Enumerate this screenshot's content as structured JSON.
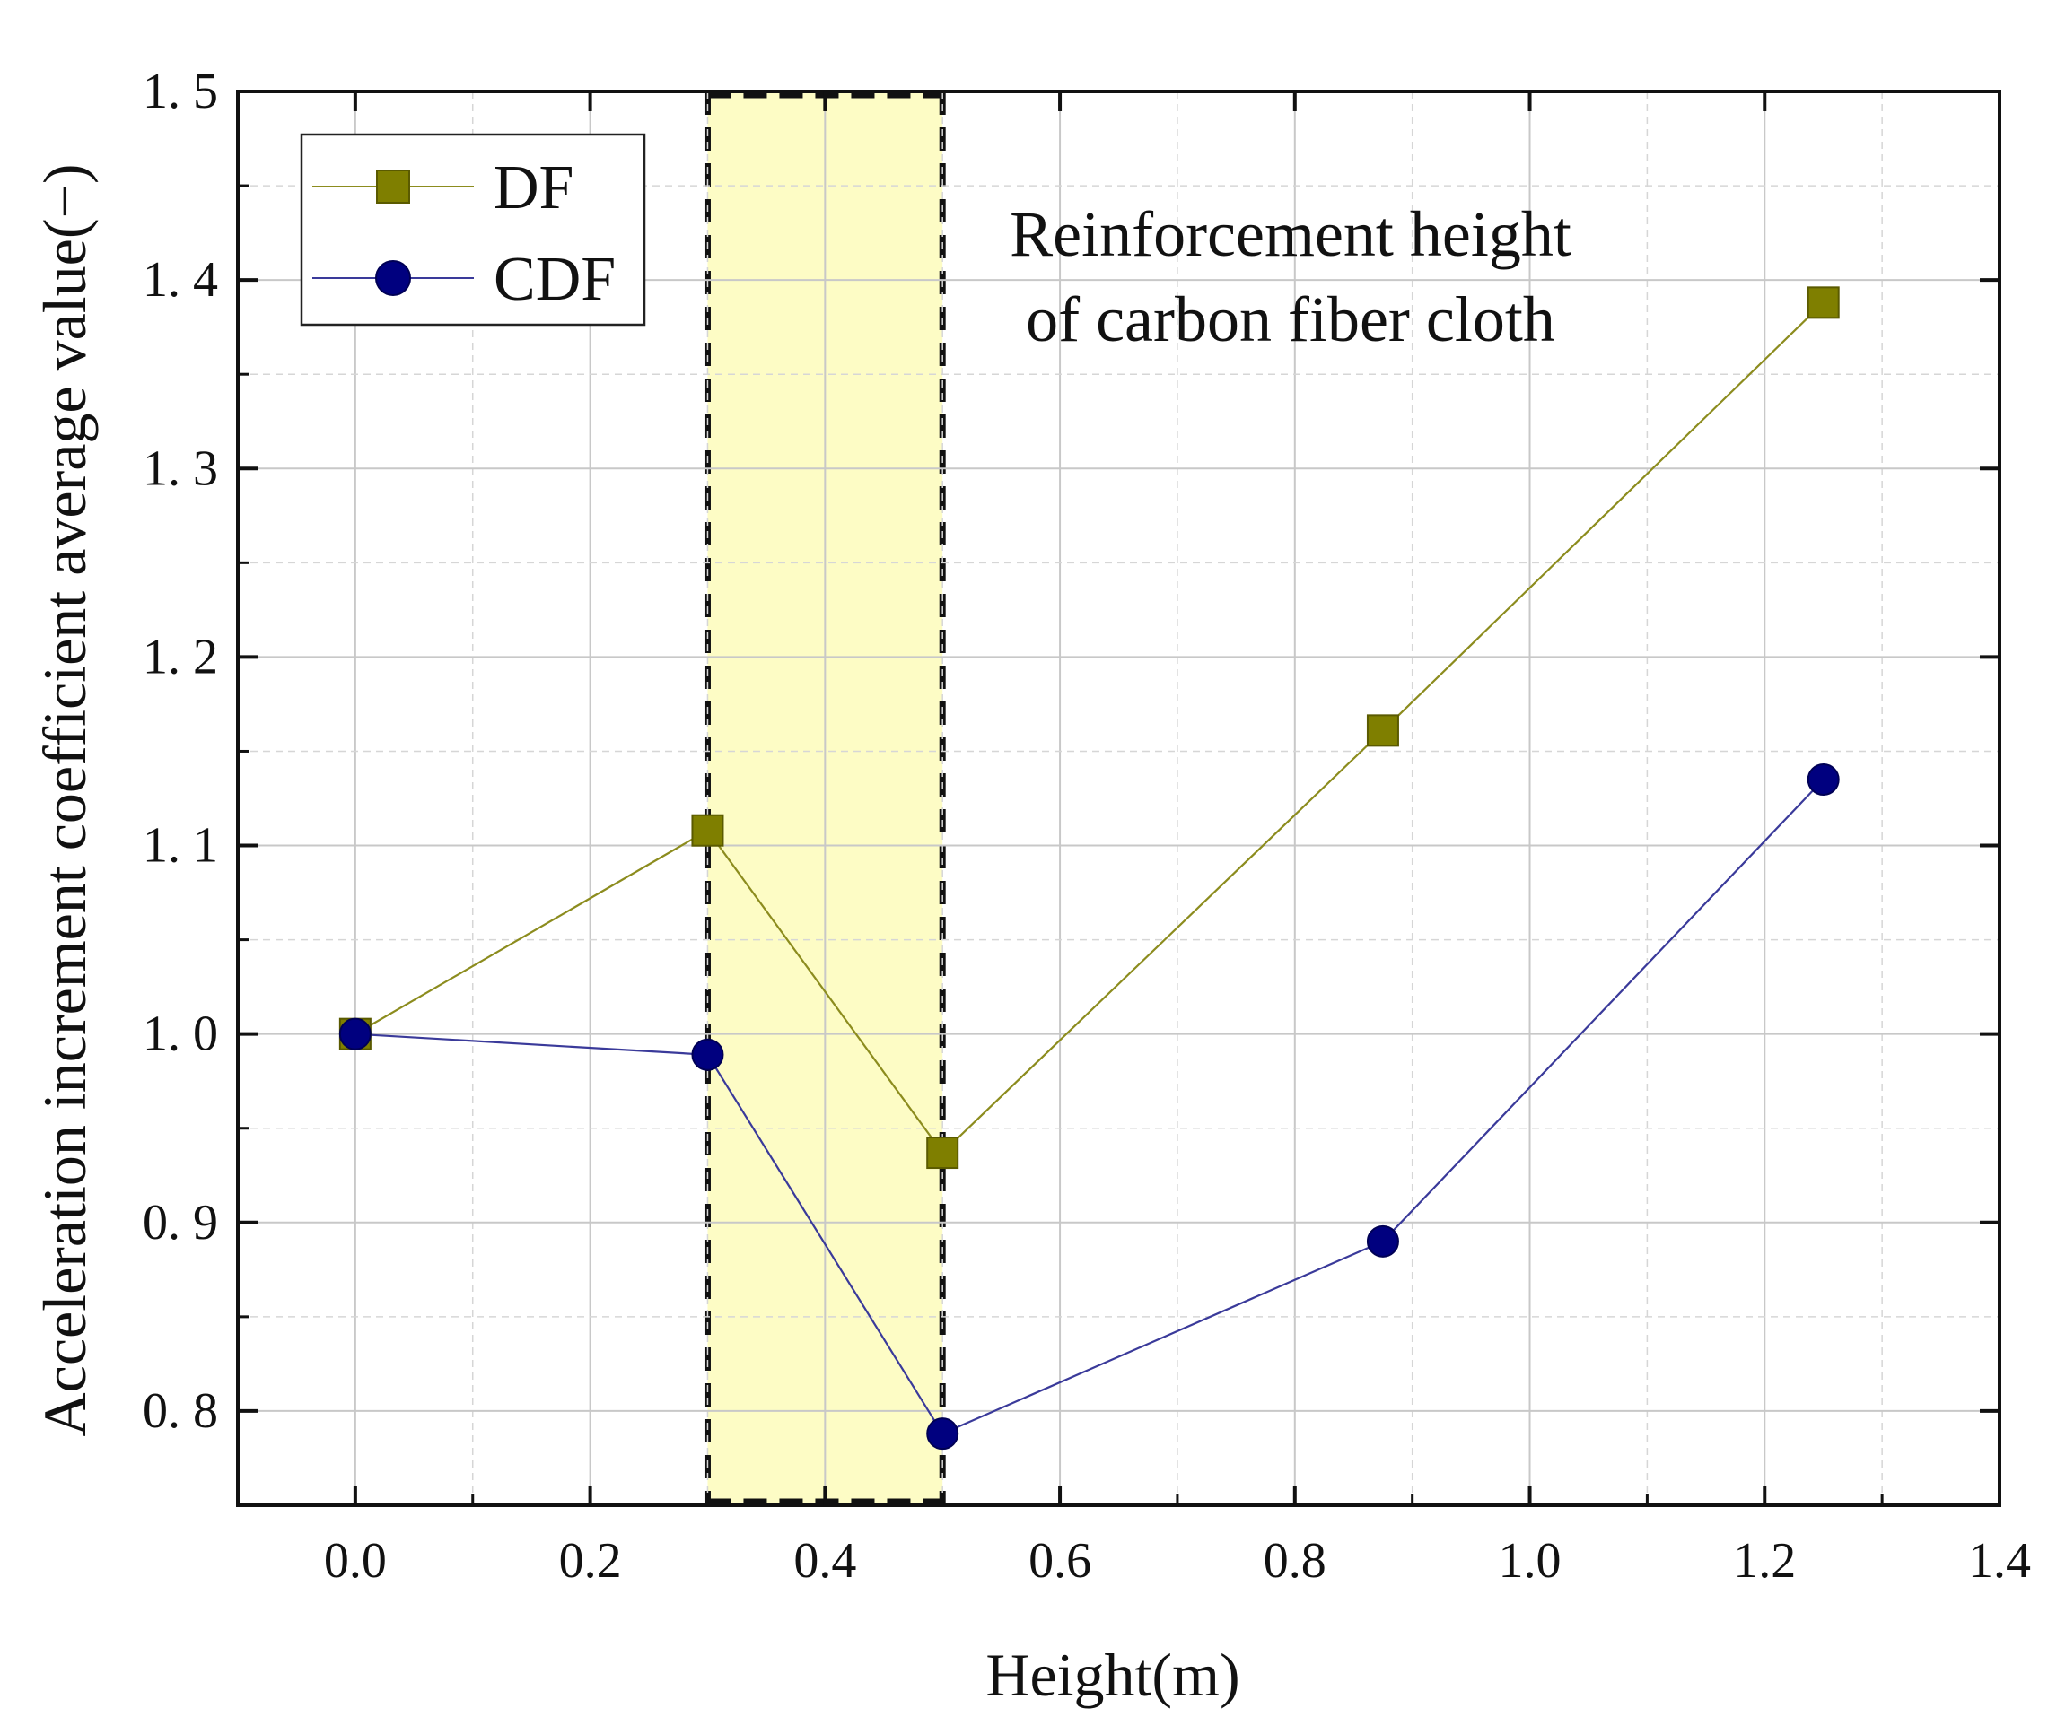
{
  "chart_data": {
    "type": "line",
    "title": "",
    "xlabel": "Height(m)",
    "ylabel": "Acceleration increment coefficient average value(−)",
    "xlim": [
      -0.1,
      1.4
    ],
    "ylim": [
      0.75,
      1.5
    ],
    "x_ticks": [
      0.0,
      0.2,
      0.4,
      0.6,
      0.8,
      1.0,
      1.2,
      1.4
    ],
    "x_tick_labels": [
      "0.0",
      "0.2",
      "0.4",
      "0.6",
      "0.8",
      "1.0",
      "1.2",
      "1.4"
    ],
    "y_ticks": [
      0.8,
      0.9,
      1.0,
      1.1,
      1.2,
      1.3,
      1.4,
      1.5
    ],
    "y_tick_labels": [
      "0. 8",
      "0. 9",
      "1. 0",
      "1. 1",
      "1. 2",
      "1. 3",
      "1. 4",
      "1. 5"
    ],
    "grid": true,
    "legend_position": "top-left",
    "x": [
      0.0,
      0.3,
      0.5,
      0.875,
      1.25
    ],
    "series": [
      {
        "name": "DF",
        "marker": "square",
        "color": "#7f7f00",
        "values": [
          1.0,
          1.108,
          0.937,
          1.161,
          1.388
        ]
      },
      {
        "name": "CDF",
        "marker": "circle",
        "color": "#00007f",
        "values": [
          1.0,
          0.989,
          0.788,
          0.89,
          1.135
        ]
      }
    ],
    "highlight_band": {
      "x_range": [
        0.3,
        0.5
      ],
      "fill": "#fdfcc5"
    },
    "annotation": {
      "line1": "Reinforcement height",
      "line2": "of carbon fiber cloth"
    }
  }
}
